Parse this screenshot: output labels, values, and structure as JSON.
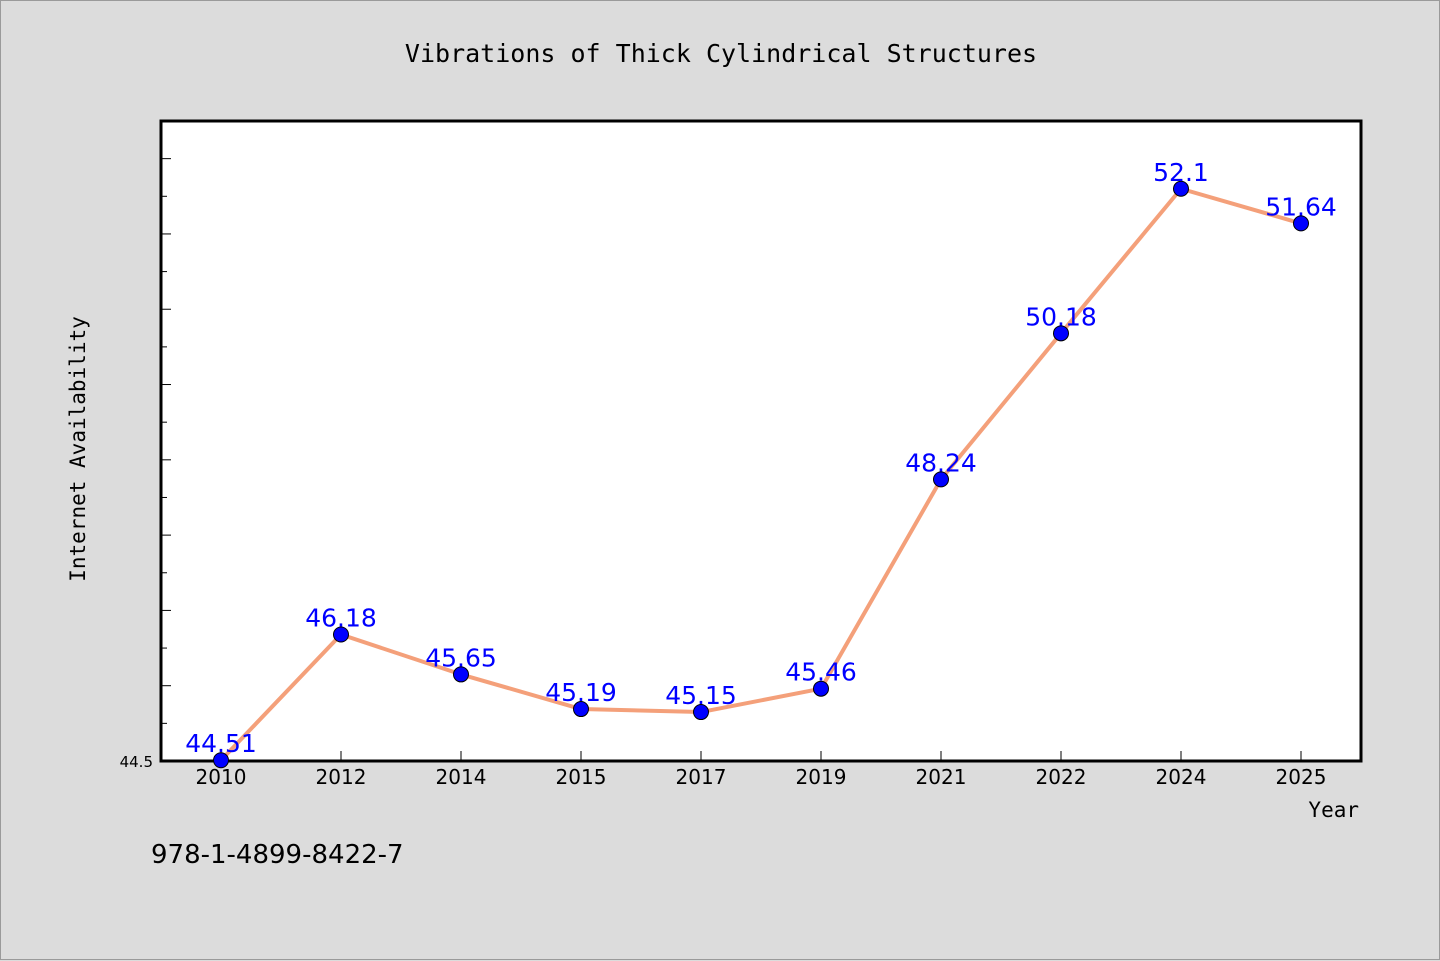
{
  "chart_data": {
    "type": "line",
    "title": "Vibrations of Thick Cylindrical Structures",
    "xlabel": "Year",
    "ylabel": "Internet Availability",
    "categories": [
      "2010",
      "2012",
      "2014",
      "2015",
      "2017",
      "2019",
      "2021",
      "2022",
      "2024",
      "2025"
    ],
    "series": [
      {
        "values": [
          44.51,
          46.18,
          45.65,
          45.19,
          45.15,
          45.46,
          48.24,
          50.18,
          52.1,
          51.64
        ],
        "labels": [
          "44.51",
          "46.18",
          "45.65",
          "45.19",
          "45.15",
          "45.46",
          "48.24",
          "50.18",
          "52.1",
          "51.64"
        ]
      }
    ],
    "ylim": [
      44.5,
      53.0
    ],
    "y_ticks_labeled": [
      "44.5"
    ],
    "grid": false,
    "line_color": "#f4a07a",
    "marker_color": "#0000ff",
    "label_color": "#0000ff"
  },
  "footer": {
    "isbn": "978-1-4899-8422-7"
  }
}
